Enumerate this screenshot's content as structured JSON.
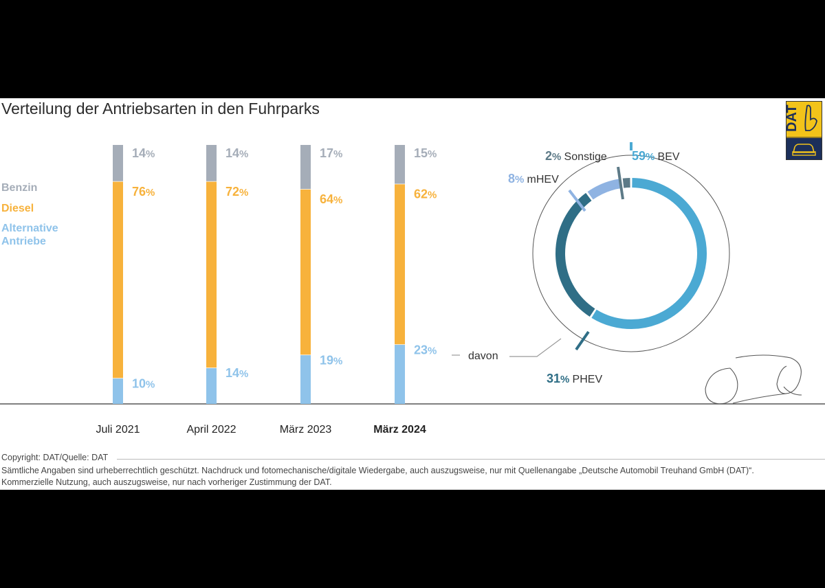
{
  "title": "Verteilung der Antriebsarten in den Fuhrparks",
  "legend": [
    {
      "label": "Benzin",
      "color": "#a5adb8"
    },
    {
      "label": "Diesel",
      "color": "#f7b23c"
    },
    {
      "label": "Alternative Antriebe",
      "color": "#8fc3ea"
    }
  ],
  "chart_data": [
    {
      "type": "bar",
      "stacked": true,
      "categories": [
        "Juli 2021",
        "April 2022",
        "März 2023",
        "März 2024"
      ],
      "highlighted_category": "März 2024",
      "series": [
        {
          "name": "Alternative Antriebe",
          "values": [
            10,
            14,
            19,
            23
          ],
          "color": "#8fc3ea"
        },
        {
          "name": "Diesel",
          "values": [
            76,
            72,
            64,
            62
          ],
          "color": "#f7b23c"
        },
        {
          "name": "Benzin",
          "values": [
            14,
            14,
            17,
            15
          ],
          "color": "#a5adb8"
        }
      ],
      "unit": "%",
      "ylim": [
        0,
        100
      ]
    },
    {
      "type": "pie",
      "annotation": "davon",
      "slices": [
        {
          "label": "BEV",
          "value": 59,
          "color": "#4ba9d3"
        },
        {
          "label": "PHEV",
          "value": 31,
          "color": "#2f6e86"
        },
        {
          "label": "mHEV",
          "value": 8,
          "color": "#8fb3e2"
        },
        {
          "label": "Sonstige",
          "value": 2,
          "color": "#5d7a87"
        }
      ],
      "unit": "%"
    }
  ],
  "logo_text": "DAT",
  "footer": {
    "copyright": "Copyright: DAT/Quelle: DAT",
    "line1": "Sämtliche Angaben sind urheberrechtlich geschützt. Nachdruck und fotomechanische/digitale Wiedergabe, auch auszugsweise, nur mit Quellenangabe „Deutsche Automobil Treuhand GmbH (DAT)“.",
    "line2": "Kommerzielle Nutzung, auch auszugsweise, nur nach vorheriger Zustimmung der DAT."
  }
}
